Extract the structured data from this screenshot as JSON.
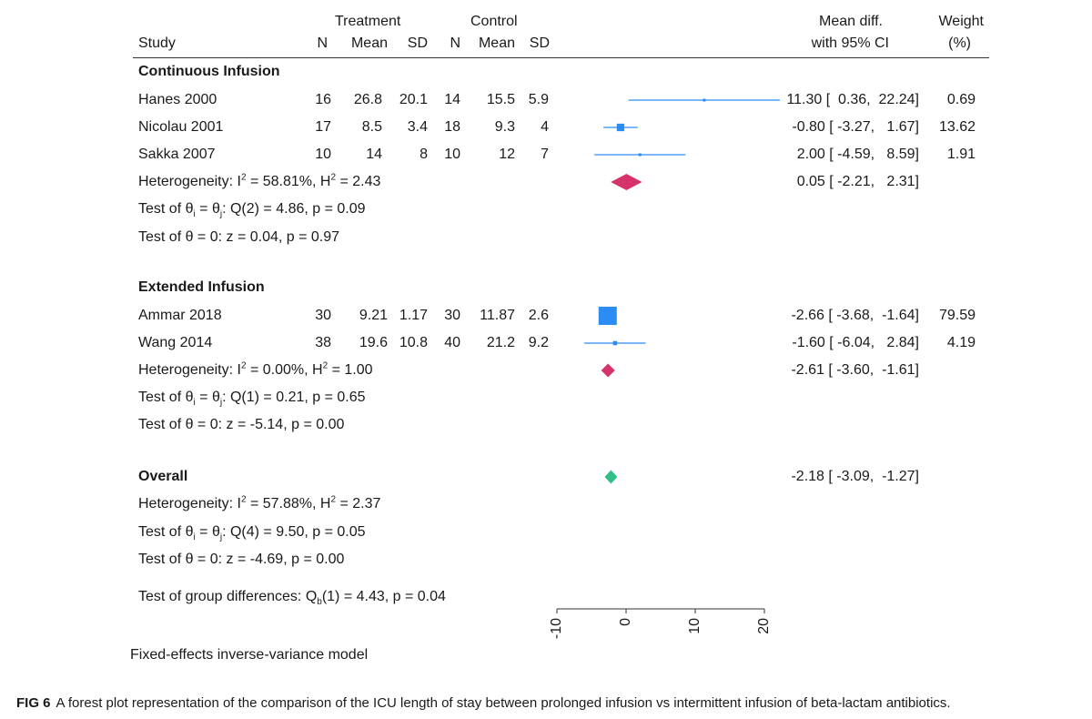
{
  "header": {
    "study": "Study",
    "treatment": "Treatment",
    "control": "Control",
    "n": "N",
    "mean": "Mean",
    "sd": "SD",
    "effect_line1": "Mean diff.",
    "effect_line2": "with 95% CI",
    "weight_line1": "Weight",
    "weight_line2": "(%)"
  },
  "groups": [
    {
      "name": "Continuous Infusion",
      "studies": [
        {
          "study": "Hanes 2000",
          "t_n": "16",
          "t_mean": "26.8",
          "t_sd": "20.1",
          "c_n": "14",
          "c_mean": "15.5",
          "c_sd": "5.9",
          "ci": "11.30 [  0.36,  22.24]",
          "weight": "0.69"
        },
        {
          "study": "Nicolau 2001",
          "t_n": "17",
          "t_mean": "8.5",
          "t_sd": "3.4",
          "c_n": "18",
          "c_mean": "9.3",
          "c_sd": "4",
          "ci": "-0.80 [ -3.27,   1.67]",
          "weight": "13.62"
        },
        {
          "study": "Sakka 2007",
          "t_n": "10",
          "t_mean": "14",
          "t_sd": "8",
          "c_n": "10",
          "c_mean": "12",
          "c_sd": "7",
          "ci": "2.00 [ -4.59,   8.59]",
          "weight": "1.91"
        }
      ],
      "heterogeneity": {
        "i2": "58.81%",
        "h2": "2.43"
      },
      "summary_ci": "0.05 [ -2.21,   2.31]",
      "test_homog": "Q(2) = 4.86, p = 0.09",
      "test_zero": "z = 0.04, p = 0.97"
    },
    {
      "name": "Extended Infusion",
      "studies": [
        {
          "study": "Ammar 2018",
          "t_n": "30",
          "t_mean": "9.21",
          "t_sd": "1.17",
          "c_n": "30",
          "c_mean": "11.87",
          "c_sd": "2.6",
          "ci": "-2.66 [ -3.68,  -1.64]",
          "weight": "79.59"
        },
        {
          "study": "Wang 2014",
          "t_n": "38",
          "t_mean": "19.6",
          "t_sd": "10.8",
          "c_n": "40",
          "c_mean": "21.2",
          "c_sd": "9.2",
          "ci": "-1.60 [ -6.04,   2.84]",
          "weight": "4.19"
        }
      ],
      "heterogeneity": {
        "i2": "0.00%",
        "h2": "1.00"
      },
      "summary_ci": "-2.61 [ -3.60,  -1.61]",
      "test_homog": "Q(1) = 0.21, p = 0.65",
      "test_zero": "z = -5.14, p = 0.00"
    }
  ],
  "overall": {
    "label": "Overall",
    "ci": "-2.18 [ -3.09,  -1.27]",
    "heterogeneity": {
      "i2": "57.88%",
      "h2": "2.37"
    },
    "test_homog": "Q(4) = 9.50, p = 0.05",
    "test_zero": "z = -4.69, p = 0.00"
  },
  "group_diff": "Test of group differences: Q",
  "group_diff_tail": "(1) = 4.43, p = 0.04",
  "model_note": "Fixed-effects inverse-variance model",
  "text": {
    "heterogeneity_prefix": "Heterogeneity: I",
    "test_theta_i": "Test of θ",
    "test_theta_zero": "Test of θ = 0: ",
    "sub_b": "b",
    "sub_i": "i",
    "sub_j": "j",
    "sup_2": "2"
  },
  "caption": {
    "label": "FIG 6",
    "text": "A forest plot representation of the comparison of the ICU length of stay between prolonged infusion vs intermittent infusion of beta-lactam antibiotics."
  },
  "colors": {
    "study_marker": "#2b8cf3",
    "continuous_diamond": "#d6336c",
    "extended_diamond": "#d6336c",
    "overall_diamond": "#2fbf8a",
    "axis": "#333333"
  },
  "chart_data": {
    "type": "forest",
    "xlim": [
      -10,
      20
    ],
    "xticks": [
      -10,
      0,
      10,
      20
    ],
    "xtick_labels": [
      "-10",
      "0",
      "10",
      "20"
    ],
    "studies": [
      {
        "name": "Hanes 2000",
        "effect": 11.3,
        "lo": 0.36,
        "hi": 22.24,
        "weight": 0.69
      },
      {
        "name": "Nicolau 2001",
        "effect": -0.8,
        "lo": -3.27,
        "hi": 1.67,
        "weight": 13.62
      },
      {
        "name": "Sakka 2007",
        "effect": 2.0,
        "lo": -4.59,
        "hi": 8.59,
        "weight": 1.91
      },
      {
        "name": "Ammar 2018",
        "effect": -2.66,
        "lo": -3.68,
        "hi": -1.64,
        "weight": 79.59
      },
      {
        "name": "Wang 2014",
        "effect": -1.6,
        "lo": -6.04,
        "hi": 2.84,
        "weight": 4.19
      }
    ],
    "summaries": [
      {
        "name": "Continuous Infusion",
        "effect": 0.05,
        "lo": -2.21,
        "hi": 2.31
      },
      {
        "name": "Extended Infusion",
        "effect": -2.61,
        "lo": -3.6,
        "hi": -1.61
      },
      {
        "name": "Overall",
        "effect": -2.18,
        "lo": -3.09,
        "hi": -1.27
      }
    ]
  }
}
